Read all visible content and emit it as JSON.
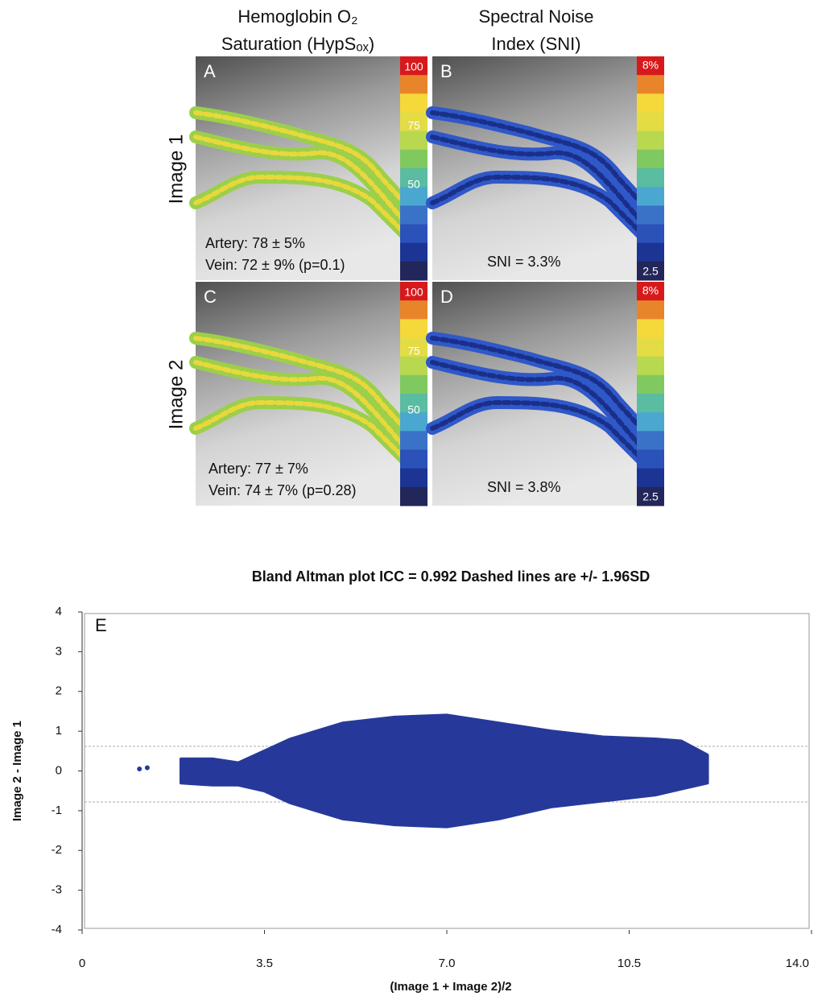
{
  "panels": {
    "col_headers": [
      [
        "Hemoglobin O₂",
        "Saturation (HypSₒₓ)"
      ],
      [
        "Spectral Noise",
        "Index (SNI)"
      ]
    ],
    "row_labels": [
      "Image 1",
      "Image 2"
    ],
    "items": [
      {
        "letter": "A",
        "lines": [
          "Artery: 78 ± 5%",
          "Vein: 72 ± 9% (p=0.1)"
        ],
        "scale": [
          "100",
          "75",
          "50"
        ]
      },
      {
        "letter": "B",
        "lines": [
          "SNI = 3.3%"
        ],
        "scale": [
          "8%",
          "2.5"
        ]
      },
      {
        "letter": "C",
        "lines": [
          "Artery: 77 ± 7%",
          "Vein: 74 ± 7% (p=0.28)"
        ],
        "scale": [
          "100",
          "75",
          "50"
        ]
      },
      {
        "letter": "D",
        "lines": [
          "SNI = 3.8%"
        ],
        "scale": [
          "8%",
          "2.5"
        ]
      }
    ]
  },
  "chart_data": {
    "type": "scatter",
    "title": "Bland Altman plot ICC = 0.992 Dashed lines are +/- 1.96SD",
    "panel_label": "E",
    "xlabel": "(Image 1 + Image 2)/2",
    "ylabel": "Image 2 - Image 1",
    "color": "#26399a",
    "xlim": [
      0,
      14
    ],
    "ylim": [
      -4,
      4
    ],
    "xticks": [
      0,
      3.5,
      {
        "value": 7,
        "label": "7.0"
      },
      10.5,
      {
        "value": 14,
        "label": "14.0"
      }
    ],
    "yticks": [
      4,
      3,
      2,
      1,
      0,
      -1,
      -2,
      -3,
      -4
    ],
    "x": [
      1.9,
      2.5,
      3.0,
      3.5,
      4.0,
      5.0,
      6.0,
      7.0,
      8.0,
      9.0,
      10.0,
      11.0,
      11.5,
      12.0
    ],
    "upper": [
      0.3,
      0.3,
      0.2,
      0.5,
      0.8,
      1.2,
      1.35,
      1.4,
      1.2,
      1.0,
      0.85,
      0.8,
      0.75,
      0.4
    ],
    "lower": [
      -0.3,
      -0.35,
      -0.35,
      -0.5,
      -0.8,
      -1.2,
      -1.35,
      -1.4,
      -1.2,
      -0.9,
      -0.75,
      -0.6,
      -0.45,
      -0.3
    ],
    "outliers": {
      "x": [
        1.1,
        1.25
      ],
      "y": [
        0.05,
        0.08
      ]
    },
    "hlines": [
      0.62,
      -0.78
    ]
  }
}
